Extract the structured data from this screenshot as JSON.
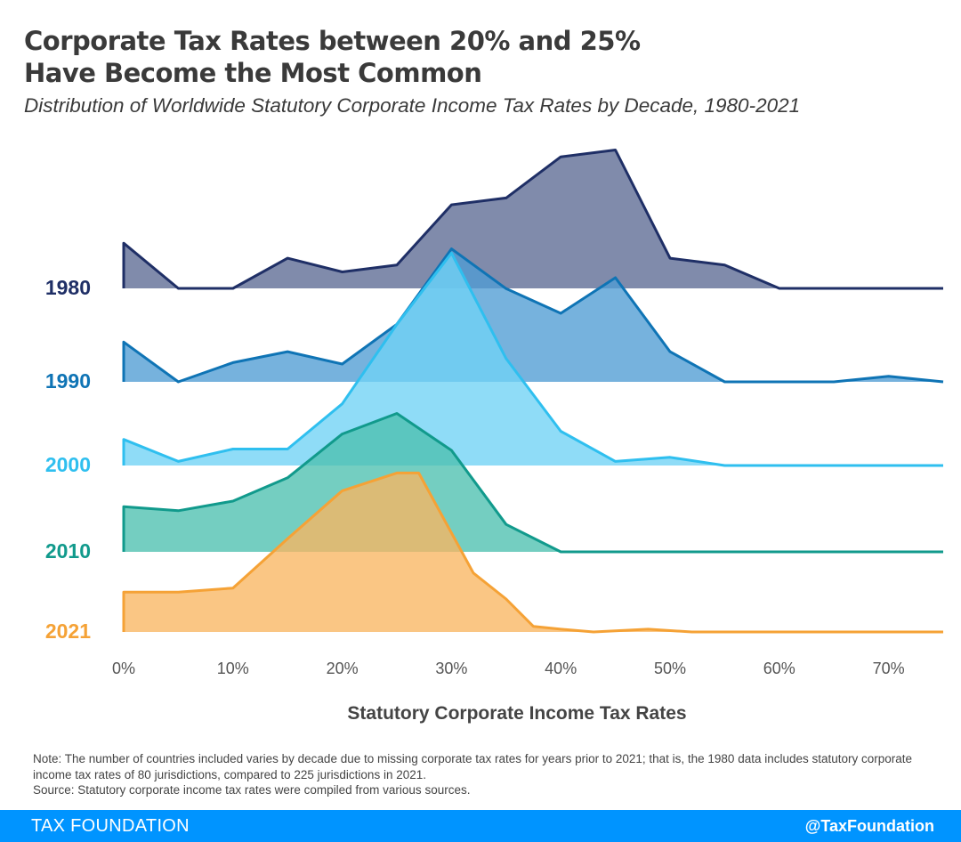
{
  "title_line1": "Corporate Tax Rates between 20% and 25%",
  "title_line2": "Have Become the Most Common",
  "subtitle": "Distribution of Worldwide Statutory Corporate Income Tax Rates by Decade, 1980-2021",
  "note": "Note: The number of countries included varies by decade due to missing corporate tax rates for years prior to 2021; that is, the 1980 data includes statutory corporate income tax rates of 80 jurisdictions, compared to 225 jurisdictions in 2021.",
  "source": "Source: Statutory corporate income tax rates were compiled from various sources.",
  "footer": {
    "brand": "TAX FOUNDATION",
    "handle": "@TaxFoundation"
  },
  "chart_data": {
    "type": "area",
    "subtype": "ridgeline",
    "xlabel": "Statutory Corporate Income Tax Rates",
    "xlim": [
      0,
      75
    ],
    "xticks": [
      0,
      10,
      20,
      30,
      40,
      50,
      60,
      70
    ],
    "xtick_labels": [
      "0%",
      "10%",
      "20%",
      "30%",
      "40%",
      "50%",
      "60%",
      "70%"
    ],
    "ylabel": "",
    "note": "Relative frequency (density, arbitrary units) of countries at each statutory rate",
    "series": [
      {
        "name": "1980",
        "color": "#1f2f66",
        "fill": "#5c6a94",
        "points": [
          [
            0,
            3.3
          ],
          [
            5,
            0
          ],
          [
            10,
            0
          ],
          [
            15,
            2.2
          ],
          [
            20,
            1.2
          ],
          [
            25,
            1.7
          ],
          [
            30,
            6.1
          ],
          [
            35,
            6.6
          ],
          [
            40,
            9.6
          ],
          [
            45,
            10.1
          ],
          [
            50,
            2.2
          ],
          [
            55,
            1.7
          ],
          [
            60,
            0
          ],
          [
            65,
            0
          ],
          [
            70,
            0
          ],
          [
            75,
            0
          ]
        ]
      },
      {
        "name": "1990",
        "color": "#0f74b5",
        "fill": "#4f9cd4",
        "points": [
          [
            0,
            2.9
          ],
          [
            5,
            0
          ],
          [
            10,
            1.4
          ],
          [
            15,
            2.2
          ],
          [
            20,
            1.3
          ],
          [
            25,
            4.2
          ],
          [
            30,
            9.7
          ],
          [
            35,
            6.8
          ],
          [
            40,
            5.0
          ],
          [
            45,
            7.6
          ],
          [
            50,
            2.2
          ],
          [
            55,
            0
          ],
          [
            60,
            0
          ],
          [
            65,
            0
          ],
          [
            70,
            0.4
          ],
          [
            75,
            0
          ]
        ]
      },
      {
        "name": "2000",
        "color": "#2fbfef",
        "fill": "#6fd2f5",
        "points": [
          [
            0,
            1.9
          ],
          [
            5,
            0.3
          ],
          [
            10,
            1.2
          ],
          [
            15,
            1.2
          ],
          [
            20,
            4.5
          ],
          [
            25,
            10.3
          ],
          [
            30,
            15.5
          ],
          [
            35,
            7.8
          ],
          [
            40,
            2.5
          ],
          [
            45,
            0.3
          ],
          [
            50,
            0.6
          ],
          [
            55,
            0
          ],
          [
            60,
            0
          ],
          [
            65,
            0
          ],
          [
            70,
            0
          ],
          [
            75,
            0
          ]
        ]
      },
      {
        "name": "2010",
        "color": "#119a8c",
        "fill": "#4dc0b0",
        "points": [
          [
            0,
            3.3
          ],
          [
            5,
            3.0
          ],
          [
            10,
            3.7
          ],
          [
            15,
            5.4
          ],
          [
            20,
            8.6
          ],
          [
            25,
            10.1
          ],
          [
            30,
            7.4
          ],
          [
            35,
            2.0
          ],
          [
            40,
            0
          ],
          [
            45,
            0
          ],
          [
            50,
            0
          ],
          [
            55,
            0
          ],
          [
            60,
            0
          ],
          [
            65,
            0
          ],
          [
            70,
            0
          ],
          [
            75,
            0
          ]
        ]
      },
      {
        "name": "2021",
        "color": "#f5a236",
        "fill": "#f8b661",
        "points": [
          [
            0,
            2.9
          ],
          [
            5,
            2.9
          ],
          [
            10,
            3.2
          ],
          [
            15,
            6.8
          ],
          [
            20,
            10.3
          ],
          [
            25,
            11.6
          ],
          [
            27,
            11.6
          ],
          [
            32,
            4.3
          ],
          [
            35,
            2.4
          ],
          [
            37.5,
            0.4
          ],
          [
            40,
            0.2
          ],
          [
            43,
            0
          ],
          [
            48,
            0.2
          ],
          [
            52,
            0
          ],
          [
            60,
            0
          ],
          [
            70,
            0
          ],
          [
            75,
            0
          ]
        ]
      }
    ]
  }
}
